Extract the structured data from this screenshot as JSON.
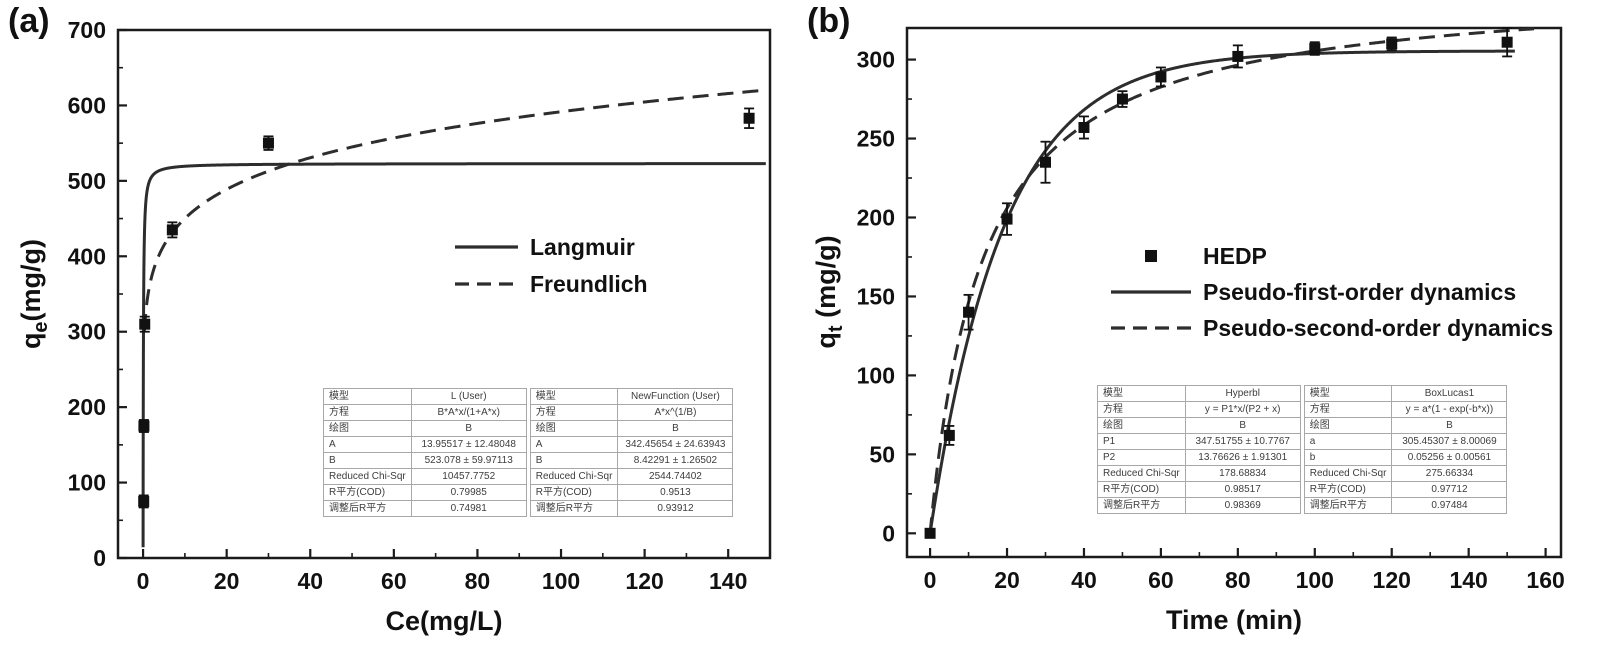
{
  "figure": {
    "background": "#ffffff",
    "ink_color": "#1b1b1b",
    "curve_color": "#2d2d2d",
    "marker_color": "#111111"
  },
  "chart_data": [
    {
      "type": "scatter",
      "panel_label": "(a)",
      "xlabel": "Ce(mg/L)",
      "ylabel": {
        "main": "q",
        "sub": "e",
        "rest": "(mg/g)"
      },
      "xlim": [
        -6,
        150
      ],
      "ylim": [
        0,
        700
      ],
      "xticks": [
        0,
        20,
        40,
        60,
        80,
        100,
        120,
        140
      ],
      "yticks": [
        0,
        100,
        200,
        300,
        400,
        500,
        600,
        700
      ],
      "grid": false,
      "legend_position": "center-right",
      "points": {
        "name": "adsorption-isotherm-data",
        "x": [
          0.15,
          0.2,
          0.4,
          7,
          30,
          145
        ],
        "y": [
          75,
          175,
          310,
          435,
          550,
          583
        ],
        "yerr": [
          8,
          8,
          10,
          10,
          9,
          13
        ]
      },
      "curves": [
        {
          "label": "Langmuir",
          "style": "solid",
          "fn": "langmuir",
          "equation": "B*A*x/(1+A*x)",
          "params": {
            "A": 13.95517,
            "B": 523.078
          },
          "x_start": 0.002,
          "x_end": 149,
          "sample_pow": 3
        },
        {
          "label": "Freundlich",
          "style": "dashed",
          "fn": "freundlich",
          "equation": "A*x^(1/B)",
          "params": {
            "A": 342.45654,
            "B": 8.42291
          },
          "x_start": 0.35,
          "x_end": 148,
          "sample_pow": 2
        }
      ],
      "legend": [
        {
          "label": "Langmuir",
          "style": "solid"
        },
        {
          "label": "Freundlich",
          "style": "dashed"
        }
      ],
      "tables": [
        {
          "rows": [
            [
              "模型",
              "L (User)"
            ],
            [
              "方程",
              "B*A*x/(1+A*x)"
            ],
            [
              "绘图",
              "B"
            ],
            [
              "A",
              "13.95517 ± 12.48048"
            ],
            [
              "B",
              "523.078 ± 59.97113"
            ],
            [
              "Reduced Chi-Sqr",
              "10457.7752"
            ],
            [
              "R平方(COD)",
              "0.79985"
            ],
            [
              "调整后R平方",
              "0.74981"
            ]
          ]
        },
        {
          "rows": [
            [
              "模型",
              "NewFunction (User)"
            ],
            [
              "方程",
              "A*x^(1/B)"
            ],
            [
              "绘图",
              "B"
            ],
            [
              "A",
              "342.45654 ± 24.63943"
            ],
            [
              "B",
              "8.42291 ± 1.26502"
            ],
            [
              "Reduced Chi-Sqr",
              "2544.74402"
            ],
            [
              "R平方(COD)",
              "0.9513"
            ],
            [
              "调整后R平方",
              "0.93912"
            ]
          ]
        }
      ]
    },
    {
      "type": "scatter",
      "panel_label": "(b)",
      "xlabel": "Time (min)",
      "ylabel": {
        "main": "q",
        "sub": "t",
        "rest": " (mg/g)"
      },
      "xlim": [
        -6,
        164
      ],
      "ylim": [
        -15,
        320
      ],
      "xticks": [
        0,
        20,
        40,
        60,
        80,
        100,
        120,
        140,
        160
      ],
      "yticks": [
        0,
        50,
        100,
        150,
        200,
        250,
        300
      ],
      "grid": false,
      "legend_position": "center-right",
      "points": {
        "name": "hedp-kinetics-data",
        "x": [
          0,
          5,
          10,
          20,
          30,
          40,
          50,
          60,
          80,
          100,
          120,
          150
        ],
        "y": [
          0,
          62,
          140,
          199,
          235,
          257,
          275,
          289,
          302,
          307,
          310,
          311
        ],
        "yerr": [
          0,
          6,
          11,
          10,
          13,
          7,
          5,
          6,
          7,
          4,
          4,
          9
        ]
      },
      "curves": [
        {
          "label": "Pseudo-first-order dynamics",
          "style": "solid",
          "fn": "firstorder",
          "equation": "y = a*(1 - exp(-b*x))",
          "params": {
            "a": 305.45307,
            "b": 0.05256
          },
          "x_start": 0,
          "x_end": 152,
          "sample_pow": 1
        },
        {
          "label": "Pseudo-second-order dynamics",
          "style": "dashed",
          "fn": "secondorder",
          "equation": "y = P1*x/(P2 + x)",
          "params": {
            "P1": 347.51755,
            "P2": 13.76626
          },
          "x_start": 0,
          "x_end": 157,
          "sample_pow": 1
        }
      ],
      "legend": [
        {
          "label": "HEDP",
          "style": "marker"
        },
        {
          "label": "Pseudo-first-order dynamics",
          "style": "solid"
        },
        {
          "label": "Pseudo-second-order dynamics",
          "style": "dashed"
        }
      ],
      "tables": [
        {
          "rows": [
            [
              "模型",
              "Hyperbl"
            ],
            [
              "方程",
              "y = P1*x/(P2 + x)"
            ],
            [
              "绘图",
              "B"
            ],
            [
              "P1",
              "347.51755 ± 10.7767"
            ],
            [
              "P2",
              "13.76626 ± 1.91301"
            ],
            [
              "Reduced Chi-Sqr",
              "178.68834"
            ],
            [
              "R平方(COD)",
              "0.98517"
            ],
            [
              "调整后R平方",
              "0.98369"
            ]
          ]
        },
        {
          "rows": [
            [
              "模型",
              "BoxLucas1"
            ],
            [
              "方程",
              "y = a*(1 - exp(-b*x))"
            ],
            [
              "绘图",
              "B"
            ],
            [
              "a",
              "305.45307 ± 8.00069"
            ],
            [
              "b",
              "0.05256 ± 0.00561"
            ],
            [
              "Reduced Chi-Sqr",
              "275.66334"
            ],
            [
              "R平方(COD)",
              "0.97712"
            ],
            [
              "调整后R平方",
              "0.97484"
            ]
          ]
        }
      ]
    }
  ]
}
